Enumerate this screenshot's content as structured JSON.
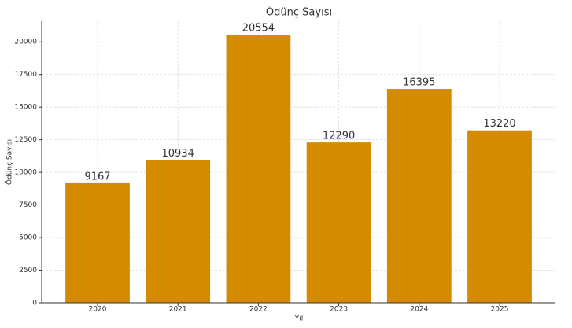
{
  "chart_data": {
    "type": "bar",
    "title": "Ödünç Sayısı",
    "x_label": "Yıl",
    "y_label": "Ödünç Sayısı",
    "categories": [
      "2020",
      "2021",
      "2022",
      "2023",
      "2024",
      "2025"
    ],
    "values": [
      9167,
      10934,
      20554,
      12290,
      16395,
      13220
    ],
    "color": "#d58b00",
    "ylim": [
      0,
      21582
    ],
    "yticks": [
      0,
      2500,
      5000,
      7500,
      10000,
      12500,
      15000,
      17500,
      20000
    ],
    "grid": true
  }
}
